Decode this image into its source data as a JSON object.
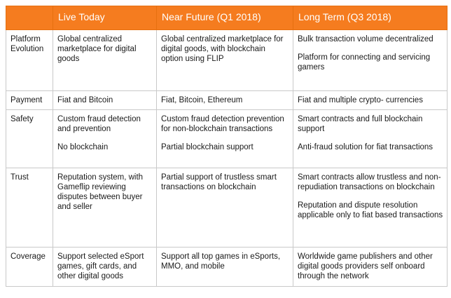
{
  "header": {
    "col0": "",
    "col1": "Live Today",
    "col2": "Near Future (Q1 2018)",
    "col3": "Long Term (Q3 2018)"
  },
  "rows": [
    {
      "label": "Platform Evolution",
      "cells": [
        [
          "Global centralized marketplace for digital goods"
        ],
        [
          "Global centralized marketplace for digital goods, with blockchain option using FLIP"
        ],
        [
          "Bulk transaction volume decentralized",
          "Platform for connecting and servicing gamers"
        ]
      ]
    },
    {
      "label": "Payment",
      "cells": [
        [
          "Fiat and Bitcoin"
        ],
        [
          "Fiat, Bitcoin, Ethereum"
        ],
        [
          "Fiat and multiple crypto- currencies"
        ]
      ]
    },
    {
      "label": "Safety",
      "cells": [
        [
          "Custom fraud detection and prevention",
          "No blockchain"
        ],
        [
          "Custom fraud detection prevention for non-blockchain transactions",
          "Partial blockchain support"
        ],
        [
          "Smart contracts and full blockchain support",
          "Anti-fraud solution for fiat transactions"
        ]
      ]
    },
    {
      "label": "Trust",
      "cells": [
        [
          "Reputation system, with Gameflip reviewing disputes between buyer and seller"
        ],
        [
          "Partial support of trustless smart transactions on blockchain"
        ],
        [
          "Smart contracts allow trustless and non-repudiation transactions on blockchain",
          "Reputation and dispute resolution applicable only to fiat based transactions"
        ]
      ]
    },
    {
      "label": "Coverage",
      "cells": [
        [
          "Support selected eSport games, gift cards, and other digital goods"
        ],
        [
          "Support all top games in eSports, MMO, and mobile"
        ],
        [
          "Worldwide game publishers and other digital goods providers self onboard through the network"
        ]
      ]
    }
  ]
}
